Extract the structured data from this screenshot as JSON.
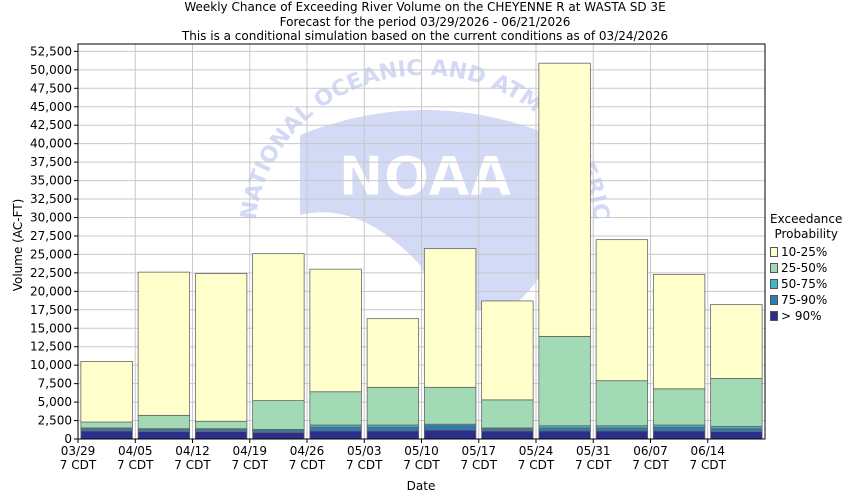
{
  "chart_data": {
    "type": "bar",
    "stacked": true,
    "title": "Weekly Chance of Exceeding River Volume on the CHEYENNE R at WASTA SD 3E",
    "subtitle": "Forecast for the period 03/29/2026 - 06/21/2026",
    "subtitle2": "This is a conditional simulation based on the current conditions as of 03/24/2026",
    "xlabel": "Date",
    "ylabel": "Volume (AC-FT)",
    "ylim": [
      0,
      53500
    ],
    "yticks": [
      0,
      2500,
      5000,
      7500,
      10000,
      12500,
      15000,
      17500,
      20000,
      22500,
      25000,
      27500,
      30000,
      32500,
      35000,
      37500,
      40000,
      42500,
      45000,
      47500,
      50000,
      52500
    ],
    "ytick_labels": [
      "0",
      "2,500",
      "5,000",
      "7,500",
      "10,000",
      "12,500",
      "15,000",
      "17,500",
      "20,000",
      "22,500",
      "25,000",
      "27,500",
      "30,000",
      "32,500",
      "35,000",
      "37,500",
      "40,000",
      "42,500",
      "45,000",
      "47,500",
      "50,000",
      "52,500"
    ],
    "xtick_labels": [
      {
        "date": "03/29",
        "tz": "7 CDT"
      },
      {
        "date": "04/05",
        "tz": "7 CDT"
      },
      {
        "date": "04/12",
        "tz": "7 CDT"
      },
      {
        "date": "04/19",
        "tz": "7 CDT"
      },
      {
        "date": "04/26",
        "tz": "7 CDT"
      },
      {
        "date": "05/03",
        "tz": "7 CDT"
      },
      {
        "date": "05/10",
        "tz": "7 CDT"
      },
      {
        "date": "05/17",
        "tz": "7 CDT"
      },
      {
        "date": "05/24",
        "tz": "7 CDT"
      },
      {
        "date": "05/31",
        "tz": "7 CDT"
      },
      {
        "date": "06/07",
        "tz": "7 CDT"
      },
      {
        "date": "06/14",
        "tz": "7 CDT"
      }
    ],
    "grid": true,
    "legend_position": "right",
    "legend_title": [
      "Exceedance",
      "Probability"
    ],
    "series": [
      {
        "name": "> 90%",
        "color": "#2b2f8a",
        "values": [
          1100,
          1000,
          1000,
          900,
          1100,
          1100,
          1200,
          1100,
          1100,
          1100,
          1100,
          1000
        ]
      },
      {
        "name": "75-90%",
        "color": "#2c7bb6",
        "values": [
          300,
          300,
          300,
          300,
          500,
          500,
          600,
          300,
          400,
          400,
          500,
          400
        ]
      },
      {
        "name": "50-75%",
        "color": "#41b6c4",
        "values": [
          100,
          100,
          100,
          100,
          300,
          300,
          200,
          100,
          300,
          300,
          300,
          300
        ]
      },
      {
        "name": "25-50%",
        "color": "#a1dab4",
        "values": [
          800,
          1800,
          1000,
          3900,
          4500,
          5100,
          5000,
          3800,
          12100,
          6100,
          4900,
          6500
        ]
      },
      {
        "name": "10-25%",
        "color": "#ffffcc",
        "values": [
          8200,
          19400,
          20000,
          19900,
          16600,
          9300,
          18800,
          13400,
          37000,
          19100,
          15500,
          10000
        ]
      }
    ],
    "watermark": {
      "top_text": "NATIONAL OCEANIC AND ATMOSPHERIC",
      "center_text": "NOAA"
    }
  }
}
